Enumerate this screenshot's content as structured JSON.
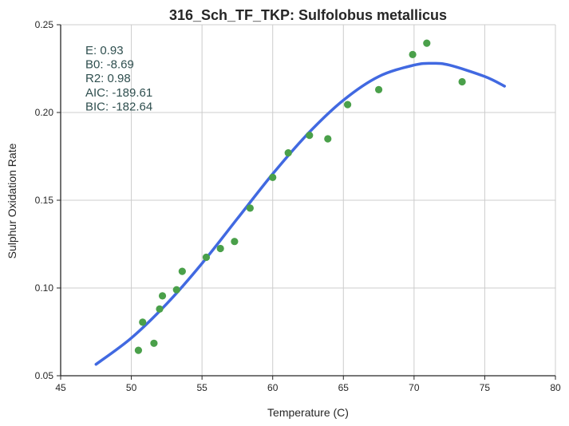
{
  "chart_data": {
    "type": "scatter",
    "title": "316_Sch_TF_TKP: Sulfolobus metallicus",
    "xlabel": "Temperature (C)",
    "ylabel": "Sulphur Oxidation Rate",
    "xlim": [
      45,
      80
    ],
    "ylim": [
      0.05,
      0.25
    ],
    "x_ticks": [
      45,
      50,
      55,
      60,
      65,
      70,
      75,
      80
    ],
    "y_ticks": [
      0.05,
      0.1,
      0.15,
      0.2,
      0.25
    ],
    "x_tick_labels": [
      "45",
      "50",
      "55",
      "60",
      "65",
      "70",
      "75",
      "80"
    ],
    "y_tick_labels": [
      "0.05",
      "0.10",
      "0.15",
      "0.20",
      "0.25"
    ],
    "grid": true,
    "points": [
      {
        "x": 50.5,
        "y": 0.0645
      },
      {
        "x": 50.8,
        "y": 0.0805
      },
      {
        "x": 51.6,
        "y": 0.0685
      },
      {
        "x": 52.0,
        "y": 0.088
      },
      {
        "x": 52.2,
        "y": 0.0955
      },
      {
        "x": 53.2,
        "y": 0.099
      },
      {
        "x": 53.6,
        "y": 0.1095
      },
      {
        "x": 55.3,
        "y": 0.1175
      },
      {
        "x": 56.3,
        "y": 0.1225
      },
      {
        "x": 57.3,
        "y": 0.1265
      },
      {
        "x": 58.4,
        "y": 0.1455
      },
      {
        "x": 60.0,
        "y": 0.163
      },
      {
        "x": 61.1,
        "y": 0.177
      },
      {
        "x": 62.6,
        "y": 0.187
      },
      {
        "x": 63.9,
        "y": 0.185
      },
      {
        "x": 65.3,
        "y": 0.2045
      },
      {
        "x": 67.5,
        "y": 0.213
      },
      {
        "x": 69.9,
        "y": 0.233
      },
      {
        "x": 70.9,
        "y": 0.2395
      },
      {
        "x": 73.4,
        "y": 0.2175
      }
    ],
    "fit": {
      "x": [
        47.5,
        50,
        52.5,
        55,
        57.5,
        60,
        62.5,
        65,
        67.5,
        70,
        71.3,
        72.5,
        75,
        76.4
      ],
      "y": [
        0.0565,
        0.0715,
        0.091,
        0.114,
        0.1395,
        0.165,
        0.188,
        0.207,
        0.2205,
        0.227,
        0.228,
        0.227,
        0.2205,
        0.215
      ]
    },
    "stats": [
      "E:  0.93",
      "B0:  -8.69",
      "R2:  0.98",
      "AIC: -189.61",
      "BIC: -182.64"
    ],
    "colors": {
      "points": "#4aa04a",
      "fit": "#4169e1",
      "stats_text": "#2f4f4f"
    }
  }
}
